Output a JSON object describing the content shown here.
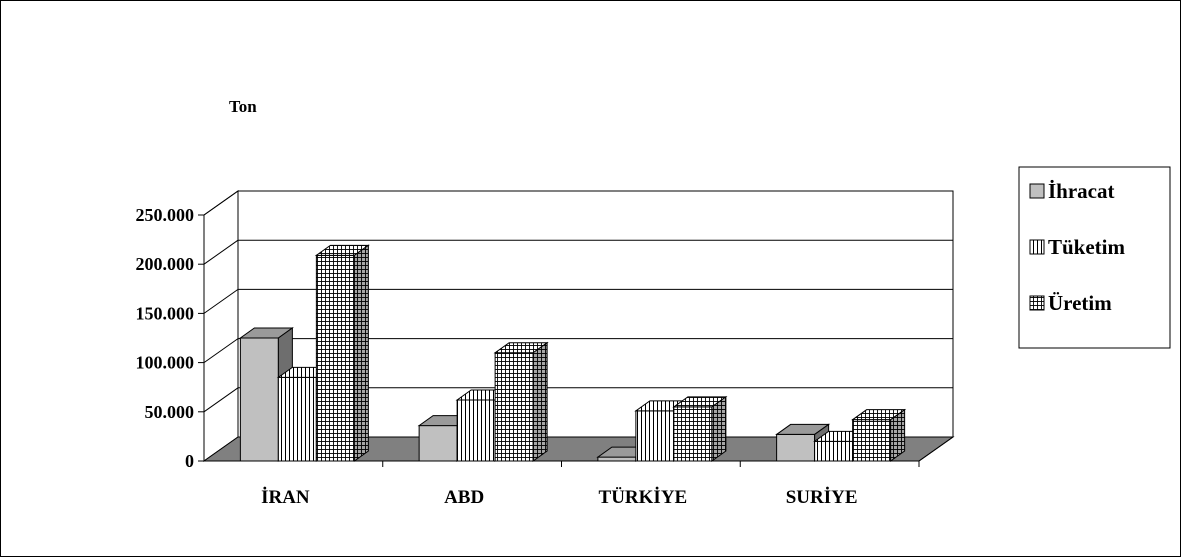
{
  "chart_data": {
    "type": "bar",
    "ylabel": "Ton",
    "categories": [
      "İRAN",
      "ABD",
      "TÜRKİYE",
      "SURİYE"
    ],
    "ylim": [
      0,
      250000
    ],
    "yticks": [
      0,
      50000,
      100000,
      150000,
      200000,
      250000
    ],
    "ytick_labels": [
      "0",
      "50.000",
      "100.000",
      "150.000",
      "200.000",
      "250.000"
    ],
    "series": [
      {
        "name": "İhracat",
        "values": [
          125000,
          36000,
          4000,
          27000
        ],
        "color": "#c0c0c0",
        "pattern": "solid"
      },
      {
        "name": "Tüketim",
        "values": [
          85000,
          62000,
          51000,
          20000
        ],
        "color": "#ffffff",
        "pattern": "vertical-lines"
      },
      {
        "name": "Üretim",
        "values": [
          209000,
          110000,
          55000,
          42000
        ],
        "color": "#ffffff",
        "pattern": "grid"
      }
    ],
    "grid": true,
    "legend_position": "right",
    "style": "3d-clustered-column"
  }
}
